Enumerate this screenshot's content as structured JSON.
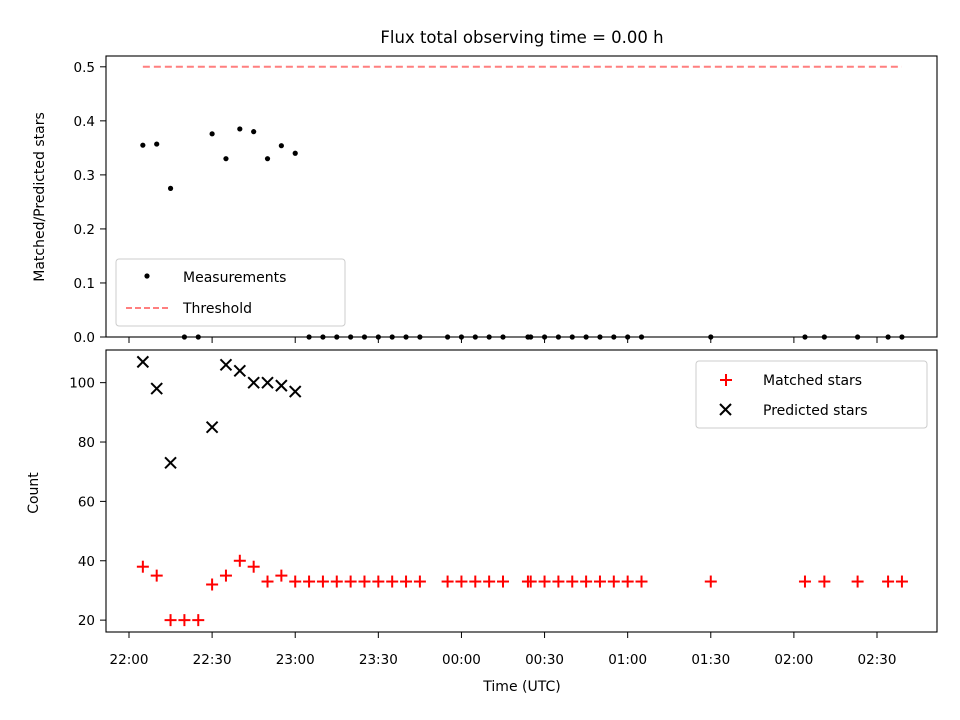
{
  "chart_data": [
    {
      "type": "scatter",
      "title": "Flux total observing time = 0.00 h",
      "ylabel": "Matched/Predicted stars",
      "xlabel": "",
      "ylim": [
        0,
        0.52
      ],
      "yticks": [
        "0.0",
        "0.1",
        "0.2",
        "0.3",
        "0.4",
        "0.5"
      ],
      "legend_position": "lower-left",
      "grid": false,
      "series": [
        {
          "name": "Measurements",
          "color": "#000000",
          "marker": "dot",
          "points": [
            [
              "22:05",
              0.355
            ],
            [
              "22:10",
              0.357
            ],
            [
              "22:15",
              0.275
            ],
            [
              "22:20",
              0.0
            ],
            [
              "22:25",
              0.0
            ],
            [
              "22:30",
              0.376
            ],
            [
              "22:35",
              0.33
            ],
            [
              "22:40",
              0.385
            ],
            [
              "22:45",
              0.38
            ],
            [
              "22:50",
              0.33
            ],
            [
              "22:55",
              0.354
            ],
            [
              "23:00",
              0.34
            ],
            [
              "23:05",
              0.0
            ],
            [
              "23:10",
              0.0
            ],
            [
              "23:15",
              0.0
            ],
            [
              "23:20",
              0.0
            ],
            [
              "23:25",
              0.0
            ],
            [
              "23:30",
              0.0
            ],
            [
              "23:35",
              0.0
            ],
            [
              "23:40",
              0.0
            ],
            [
              "23:45",
              0.0
            ],
            [
              "23:55",
              0.0
            ],
            [
              "00:00",
              0.0
            ],
            [
              "00:05",
              0.0
            ],
            [
              "00:10",
              0.0
            ],
            [
              "00:15",
              0.0
            ],
            [
              "00:24",
              0.0
            ],
            [
              "00:25",
              0.0
            ],
            [
              "00:30",
              0.0
            ],
            [
              "00:35",
              0.0
            ],
            [
              "00:40",
              0.0
            ],
            [
              "00:45",
              0.0
            ],
            [
              "00:50",
              0.0
            ],
            [
              "00:55",
              0.0
            ],
            [
              "01:00",
              0.0
            ],
            [
              "01:05",
              0.0
            ],
            [
              "01:30",
              0.0
            ],
            [
              "02:04",
              0.0
            ],
            [
              "02:11",
              0.0
            ],
            [
              "02:23",
              0.0
            ],
            [
              "02:34",
              0.0
            ],
            [
              "02:39",
              0.0
            ]
          ]
        },
        {
          "name": "Threshold",
          "color": "#ff7f7f",
          "style": "dashed",
          "x": [
            "22:05",
            "02:39"
          ],
          "y": [
            0.5,
            0.5
          ]
        }
      ]
    },
    {
      "type": "scatter",
      "title": "",
      "ylabel": "Count",
      "xlabel": "Time (UTC)",
      "ylim": [
        16,
        111
      ],
      "yticks": [
        "20",
        "40",
        "60",
        "80",
        "100"
      ],
      "xticks": [
        "22:00",
        "22:30",
        "23:00",
        "23:30",
        "00:00",
        "00:30",
        "01:00",
        "01:30",
        "02:00",
        "02:30"
      ],
      "legend_position": "upper-right",
      "grid": false,
      "series": [
        {
          "name": "Matched stars",
          "color": "#ff0000",
          "marker": "plus",
          "points": [
            [
              "22:05",
              38
            ],
            [
              "22:10",
              35
            ],
            [
              "22:15",
              20
            ],
            [
              "22:20",
              20
            ],
            [
              "22:25",
              20
            ],
            [
              "22:30",
              32
            ],
            [
              "22:35",
              35
            ],
            [
              "22:40",
              40
            ],
            [
              "22:45",
              38
            ],
            [
              "22:50",
              33
            ],
            [
              "22:55",
              35
            ],
            [
              "23:00",
              33
            ],
            [
              "23:05",
              33
            ],
            [
              "23:10",
              33
            ],
            [
              "23:15",
              33
            ],
            [
              "23:20",
              33
            ],
            [
              "23:25",
              33
            ],
            [
              "23:30",
              33
            ],
            [
              "23:35",
              33
            ],
            [
              "23:40",
              33
            ],
            [
              "23:45",
              33
            ],
            [
              "23:55",
              33
            ],
            [
              "00:00",
              33
            ],
            [
              "00:05",
              33
            ],
            [
              "00:10",
              33
            ],
            [
              "00:15",
              33
            ],
            [
              "00:24",
              33
            ],
            [
              "00:25",
              33
            ],
            [
              "00:30",
              33
            ],
            [
              "00:35",
              33
            ],
            [
              "00:40",
              33
            ],
            [
              "00:45",
              33
            ],
            [
              "00:50",
              33
            ],
            [
              "00:55",
              33
            ],
            [
              "01:00",
              33
            ],
            [
              "01:05",
              33
            ],
            [
              "01:30",
              33
            ],
            [
              "02:04",
              33
            ],
            [
              "02:11",
              33
            ],
            [
              "02:23",
              33
            ],
            [
              "02:34",
              33
            ],
            [
              "02:39",
              33
            ]
          ]
        },
        {
          "name": "Predicted stars",
          "color": "#000000",
          "marker": "x",
          "points": [
            [
              "22:05",
              107
            ],
            [
              "22:10",
              98
            ],
            [
              "22:15",
              73
            ],
            [
              "22:30",
              85
            ],
            [
              "22:35",
              106
            ],
            [
              "22:40",
              104
            ],
            [
              "22:45",
              100
            ],
            [
              "22:50",
              100
            ],
            [
              "22:55",
              99
            ],
            [
              "23:00",
              97
            ]
          ]
        }
      ]
    }
  ]
}
